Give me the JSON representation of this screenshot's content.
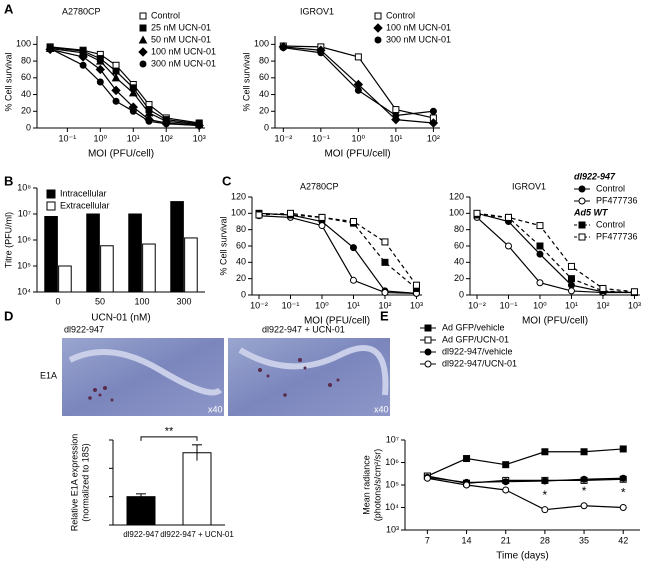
{
  "chart_data": [
    {
      "type": "line",
      "panel_label": "A",
      "title": "A2780CP",
      "xlabel": "MOI (PFU/cell)",
      "ylabel": "% Cell survival",
      "xscale": "log",
      "xlim": [
        0.012,
        1500
      ],
      "ylim": [
        0,
        110
      ],
      "legend": "upper right",
      "color": "#000000",
      "xticks": [
        {
          "value": 0.1,
          "label": "10⁻¹"
        },
        {
          "value": 1,
          "label": "10⁰"
        },
        {
          "value": 10,
          "label": "10¹"
        },
        {
          "value": 100,
          "label": "10²"
        },
        {
          "value": 1000,
          "label": "10³"
        }
      ],
      "yticks": [
        0,
        20,
        40,
        60,
        80,
        100
      ],
      "x": [
        0.03,
        0.3,
        1,
        3,
        10,
        30,
        100,
        1000
      ],
      "series": [
        {
          "name": "Control",
          "marker": "square-open",
          "values": [
            97,
            93,
            88,
            75,
            52,
            28,
            12,
            6
          ]
        },
        {
          "name": "25 nM UCN-01",
          "marker": "square",
          "values": [
            96,
            92,
            83,
            68,
            48,
            22,
            10,
            5
          ]
        },
        {
          "name": "50 nM UCN-01",
          "marker": "triangle",
          "values": [
            95,
            90,
            80,
            60,
            42,
            18,
            8,
            4
          ]
        },
        {
          "name": "100 nM UCN-01",
          "marker": "diamond",
          "values": [
            94,
            85,
            70,
            45,
            25,
            10,
            6,
            3
          ]
        },
        {
          "name": "300 nM UCN-01",
          "marker": "circle",
          "values": [
            95,
            75,
            55,
            32,
            20,
            8,
            5,
            3
          ]
        }
      ]
    },
    {
      "type": "line",
      "title": "IGROV1",
      "xlabel": "MOI (PFU/cell)",
      "ylabel": "% Cell survival",
      "xscale": "log",
      "xlim": [
        0.006,
        150
      ],
      "ylim": [
        0,
        110
      ],
      "legend": "upper right",
      "color": "#000000",
      "xticks": [
        {
          "value": 0.01,
          "label": "10⁻²"
        },
        {
          "value": 0.1,
          "label": "10⁻¹"
        },
        {
          "value": 1,
          "label": "10⁰"
        },
        {
          "value": 10,
          "label": "10¹"
        },
        {
          "value": 100,
          "label": "10²"
        }
      ],
      "yticks": [
        0,
        20,
        40,
        60,
        80,
        100
      ],
      "x": [
        0.01,
        0.1,
        1,
        10,
        100
      ],
      "series": [
        {
          "name": "Control",
          "marker": "square-open",
          "values": [
            98,
            97,
            85,
            22,
            12
          ]
        },
        {
          "name": "100 nM UCN-01",
          "marker": "diamond",
          "values": [
            97,
            93,
            52,
            10,
            6
          ]
        },
        {
          "name": "300 nM UCN-01",
          "marker": "circle",
          "values": [
            96,
            90,
            45,
            15,
            20
          ]
        }
      ]
    },
    {
      "type": "bar",
      "panel_label": "B",
      "xlabel": "UCN-01 (nM)",
      "ylabel": "Titre (PFU/ml)",
      "yscale": "log",
      "ylim": [
        10000,
        100000000
      ],
      "legend": "upper left",
      "yticks": [
        {
          "value": 10000,
          "label": "10⁴"
        },
        {
          "value": 100000,
          "label": "10⁵"
        },
        {
          "value": 1000000,
          "label": "10⁶"
        },
        {
          "value": 10000000,
          "label": "10⁷"
        },
        {
          "value": 100000000,
          "label": "10⁸"
        }
      ],
      "categories": [
        "0",
        "50",
        "100",
        "300"
      ],
      "series": [
        {
          "name": "Intracellular",
          "color": "#000000",
          "values": [
            8000000,
            10000000,
            10000000,
            30000000
          ]
        },
        {
          "name": "Extracellular",
          "color": "#ffffff",
          "values": [
            100000,
            600000,
            700000,
            1200000
          ]
        }
      ]
    },
    {
      "type": "line",
      "panel_label": "C",
      "title": "A2780CP",
      "xlabel": "MOI (PFU/cell)",
      "ylabel": "% Cell survival",
      "xscale": "log",
      "xlim": [
        0.006,
        1500
      ],
      "ylim": [
        0,
        120
      ],
      "color": "#000000",
      "xticks": [
        {
          "value": 0.01,
          "label": "10⁻²"
        },
        {
          "value": 0.1,
          "label": "10⁻¹"
        },
        {
          "value": 1,
          "label": "10⁰"
        },
        {
          "value": 10,
          "label": "10¹"
        },
        {
          "value": 100,
          "label": "10²"
        },
        {
          "value": 1000,
          "label": "10³"
        }
      ],
      "yticks": [
        0,
        20,
        40,
        60,
        80,
        100,
        120
      ],
      "x": [
        0.01,
        0.1,
        1,
        10,
        100,
        1000
      ],
      "series": [
        {
          "marker": "circle",
          "values": [
            100,
            98,
            90,
            58,
            5,
            2
          ]
        },
        {
          "marker": "circle-open",
          "values": [
            97,
            95,
            85,
            18,
            3,
            2
          ]
        },
        {
          "marker": "square",
          "dashed": true,
          "values": [
            100,
            98,
            95,
            88,
            40,
            8
          ]
        },
        {
          "marker": "square-open",
          "dashed": true,
          "values": [
            98,
            100,
            95,
            90,
            65,
            12
          ]
        }
      ]
    },
    {
      "type": "line",
      "title": "IGROV1",
      "xlabel": "MOI (PFU/cell)",
      "xscale": "log",
      "xlim": [
        0.006,
        1500
      ],
      "ylim": [
        0,
        120
      ],
      "legend": "upper right",
      "legend_lines": true,
      "color": "#000000",
      "legend_titles": [
        "dl922-947",
        "Ad5 WT"
      ],
      "xticks": [
        {
          "value": 0.01,
          "label": "10⁻²"
        },
        {
          "value": 0.1,
          "label": "10⁻¹"
        },
        {
          "value": 1,
          "label": "10⁰"
        },
        {
          "value": 10,
          "label": "10¹"
        },
        {
          "value": 100,
          "label": "10²"
        },
        {
          "value": 1000,
          "label": "10³"
        }
      ],
      "yticks": [
        0,
        20,
        40,
        60,
        80,
        100,
        120
      ],
      "x": [
        0.01,
        0.1,
        1,
        10,
        100,
        1000
      ],
      "series": [
        {
          "name": "Control",
          "marker": "circle",
          "values": [
            100,
            90,
            50,
            12,
            4,
            3
          ]
        },
        {
          "name": "PF477736",
          "marker": "circle-open",
          "values": [
            95,
            60,
            15,
            5,
            3,
            3
          ]
        },
        {
          "name": "Control",
          "marker": "square",
          "dashed": true,
          "values": [
            98,
            95,
            60,
            20,
            5,
            3
          ]
        },
        {
          "name": "PF477736",
          "marker": "square-open",
          "dashed": true,
          "values": [
            100,
            95,
            85,
            35,
            8,
            4
          ]
        }
      ]
    },
    {
      "type": "bar",
      "panel_label": "D",
      "image_labels": [
        "dl922-947",
        "dl922-947 + UCN-01"
      ],
      "image_row_label": "E1A",
      "magnification": "x40",
      "ylabel": [
        "Relative E1A expression",
        "(normalized to 18S)"
      ],
      "annotation": "**",
      "ylim": [
        0,
        3
      ],
      "yticks": [
        0,
        1,
        2,
        3
      ],
      "ytick_labels": false,
      "categories": [
        "dl922-947",
        "dl922-947 + UCN-01"
      ],
      "values": [
        1.0,
        2.55
      ],
      "errors": [
        0.1,
        0.28
      ],
      "colors": [
        "#000000",
        "#ffffff"
      ]
    },
    {
      "type": "line",
      "panel_label": "E",
      "xlabel": "Time (days)",
      "ylabel": [
        "Mean radiance",
        "(photons/s/cm²/sr)"
      ],
      "yscale": "log",
      "xlim": [
        3,
        45
      ],
      "ylim": [
        1000,
        10000000
      ],
      "legend": "above",
      "legend_lines": true,
      "color": "#000000",
      "xticks": [
        7,
        14,
        21,
        28,
        35,
        42
      ],
      "yticks": [
        {
          "value": 1000,
          "label": "10³"
        },
        {
          "value": 10000,
          "label": "10⁴"
        },
        {
          "value": 100000,
          "label": "10⁵"
        },
        {
          "value": 1000000,
          "label": "10⁶"
        },
        {
          "value": 10000000,
          "label": "10⁷"
        }
      ],
      "x": [
        7,
        14,
        21,
        28,
        35,
        42
      ],
      "annotations": [
        {
          "x": 28,
          "text": "*"
        },
        {
          "x": 35,
          "text": "*"
        },
        {
          "x": 42,
          "text": "*"
        }
      ],
      "series": [
        {
          "name": "Ad GFP/vehicle",
          "marker": "square",
          "values": [
            250000,
            1500000,
            800000,
            3000000,
            3000000,
            4000000
          ]
        },
        {
          "name": "Ad GFP/UCN-01",
          "marker": "square-open",
          "values": [
            250000,
            120000,
            160000,
            160000,
            160000,
            180000
          ]
        },
        {
          "name": "dl922-947/vehicle",
          "marker": "circle",
          "values": [
            220000,
            130000,
            140000,
            150000,
            180000,
            200000
          ]
        },
        {
          "name": "dl922-947/UCN-01",
          "marker": "circle-open",
          "values": [
            200000,
            100000,
            60000,
            8000,
            12000,
            10000
          ]
        }
      ]
    }
  ]
}
